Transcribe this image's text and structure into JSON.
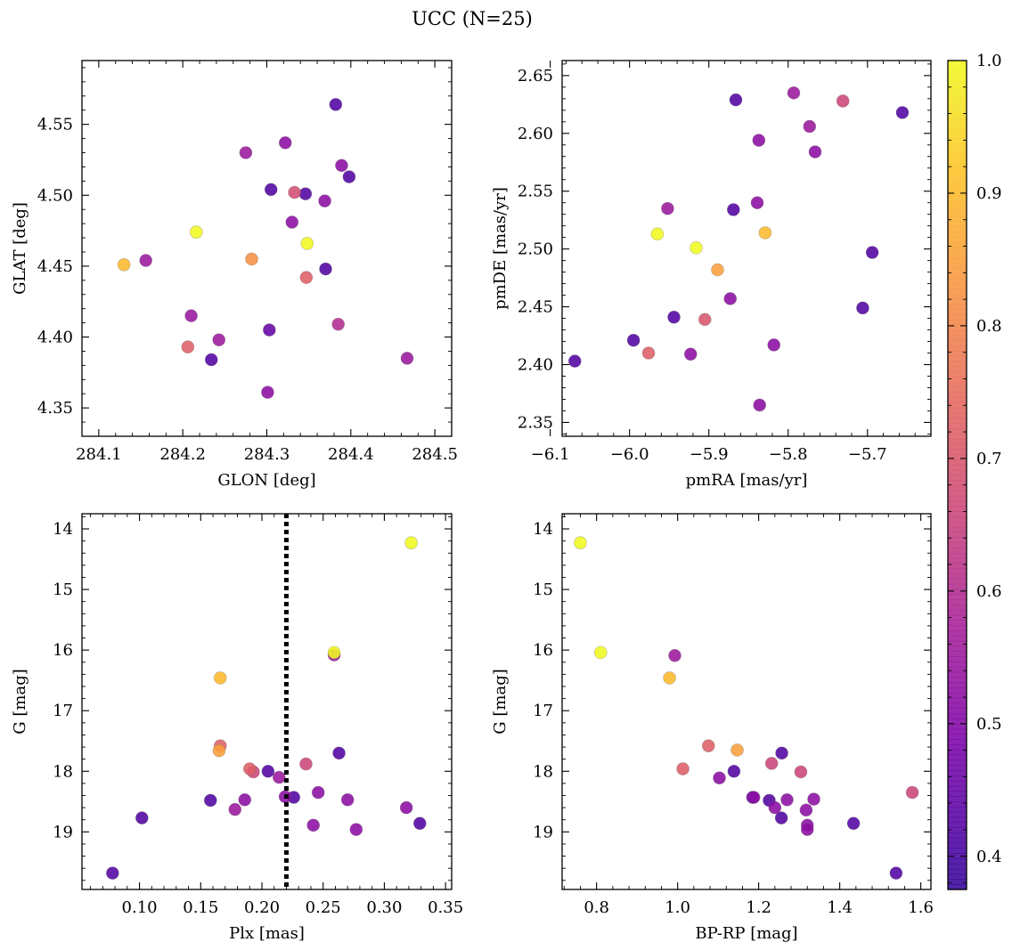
{
  "title": "UCC (N=25)",
  "colorbar": {
    "range": [
      0.375,
      1.0
    ],
    "ticks": [
      0.4,
      0.5,
      0.6,
      0.7,
      0.8,
      0.9,
      1.0
    ],
    "tick_labels": [
      "0.4",
      "0.5",
      "0.6",
      "0.7",
      "0.8",
      "0.9",
      "1.0"
    ],
    "colormap": "plasma"
  },
  "chart_data": [
    {
      "type": "scatter",
      "xlabel": "GLON [deg]",
      "ylabel": "GLAT [deg]",
      "xlim": [
        284.08,
        284.52
      ],
      "ylim": [
        4.33,
        4.595
      ],
      "xticks": [
        284.1,
        284.2,
        284.3,
        284.4,
        284.5
      ],
      "xtick_labels": [
        "284.1",
        "284.2",
        "284.3",
        "284.4",
        "284.5"
      ],
      "yticks": [
        4.35,
        4.4,
        4.45,
        4.5,
        4.55
      ],
      "ytick_labels": [
        "4.35",
        "4.40",
        "4.45",
        "4.50",
        "4.55"
      ],
      "points": [
        {
          "x": 284.382,
          "y": 4.564,
          "c": 0.42
        },
        {
          "x": 284.322,
          "y": 4.537,
          "c": 0.52
        },
        {
          "x": 284.275,
          "y": 4.53,
          "c": 0.55
        },
        {
          "x": 284.389,
          "y": 4.521,
          "c": 0.52
        },
        {
          "x": 284.398,
          "y": 4.513,
          "c": 0.42
        },
        {
          "x": 284.305,
          "y": 4.504,
          "c": 0.42
        },
        {
          "x": 284.346,
          "y": 4.501,
          "c": 0.42
        },
        {
          "x": 284.333,
          "y": 4.502,
          "c": 0.68
        },
        {
          "x": 284.369,
          "y": 4.496,
          "c": 0.52
        },
        {
          "x": 284.33,
          "y": 4.481,
          "c": 0.52
        },
        {
          "x": 284.216,
          "y": 4.474,
          "c": 1.0
        },
        {
          "x": 284.348,
          "y": 4.466,
          "c": 1.0
        },
        {
          "x": 284.13,
          "y": 4.451,
          "c": 0.9
        },
        {
          "x": 284.156,
          "y": 4.454,
          "c": 0.55
        },
        {
          "x": 284.282,
          "y": 4.455,
          "c": 0.82
        },
        {
          "x": 284.37,
          "y": 4.448,
          "c": 0.42
        },
        {
          "x": 284.347,
          "y": 4.442,
          "c": 0.72
        },
        {
          "x": 284.21,
          "y": 4.415,
          "c": 0.55
        },
        {
          "x": 284.385,
          "y": 4.409,
          "c": 0.6
        },
        {
          "x": 284.303,
          "y": 4.405,
          "c": 0.45
        },
        {
          "x": 284.243,
          "y": 4.398,
          "c": 0.55
        },
        {
          "x": 284.206,
          "y": 4.393,
          "c": 0.72
        },
        {
          "x": 284.234,
          "y": 4.384,
          "c": 0.42
        },
        {
          "x": 284.467,
          "y": 4.385,
          "c": 0.55
        },
        {
          "x": 284.301,
          "y": 4.361,
          "c": 0.52
        }
      ]
    },
    {
      "type": "scatter",
      "xlabel": "pmRA [mas/yr]",
      "ylabel": "pmDE [mas/yr]",
      "xlim": [
        -6.085,
        -5.62
      ],
      "ylim": [
        2.338,
        2.663
      ],
      "xticks": [
        -6.1,
        -6.0,
        -5.9,
        -5.8,
        -5.7
      ],
      "xtick_labels": [
        "−6.1",
        "−6.0",
        "−5.9",
        "−5.8",
        "−5.7"
      ],
      "yticks": [
        2.35,
        2.4,
        2.45,
        2.5,
        2.55,
        2.6,
        2.65
      ],
      "ytick_labels": [
        "2.35",
        "2.40",
        "2.45",
        "2.50",
        "2.55",
        "2.60",
        "2.65"
      ],
      "points": [
        {
          "x": -5.866,
          "y": 2.629,
          "c": 0.42
        },
        {
          "x": -5.793,
          "y": 2.635,
          "c": 0.55
        },
        {
          "x": -5.731,
          "y": 2.628,
          "c": 0.66
        },
        {
          "x": -5.656,
          "y": 2.618,
          "c": 0.42
        },
        {
          "x": -5.773,
          "y": 2.606,
          "c": 0.55
        },
        {
          "x": -5.837,
          "y": 2.594,
          "c": 0.52
        },
        {
          "x": -5.766,
          "y": 2.584,
          "c": 0.52
        },
        {
          "x": -5.952,
          "y": 2.535,
          "c": 0.55
        },
        {
          "x": -5.869,
          "y": 2.534,
          "c": 0.42
        },
        {
          "x": -5.839,
          "y": 2.54,
          "c": 0.52
        },
        {
          "x": -5.965,
          "y": 2.513,
          "c": 1.0
        },
        {
          "x": -5.829,
          "y": 2.514,
          "c": 0.9
        },
        {
          "x": -5.916,
          "y": 2.501,
          "c": 1.0
        },
        {
          "x": -5.694,
          "y": 2.497,
          "c": 0.42
        },
        {
          "x": -5.889,
          "y": 2.482,
          "c": 0.85
        },
        {
          "x": -5.873,
          "y": 2.457,
          "c": 0.52
        },
        {
          "x": -5.706,
          "y": 2.449,
          "c": 0.42
        },
        {
          "x": -5.944,
          "y": 2.441,
          "c": 0.42
        },
        {
          "x": -5.905,
          "y": 2.439,
          "c": 0.7
        },
        {
          "x": -5.995,
          "y": 2.421,
          "c": 0.42
        },
        {
          "x": -5.818,
          "y": 2.417,
          "c": 0.52
        },
        {
          "x": -5.976,
          "y": 2.41,
          "c": 0.72
        },
        {
          "x": -5.923,
          "y": 2.409,
          "c": 0.52
        },
        {
          "x": -6.069,
          "y": 2.403,
          "c": 0.42
        },
        {
          "x": -5.836,
          "y": 2.365,
          "c": 0.52
        }
      ]
    },
    {
      "type": "scatter",
      "xlabel": "Plx [mas]",
      "ylabel": "G [mag]",
      "xlim": [
        0.053,
        0.355
      ],
      "ylim": [
        19.95,
        13.75
      ],
      "y_inverted": true,
      "xticks": [
        0.1,
        0.15,
        0.2,
        0.25,
        0.3,
        0.35
      ],
      "xtick_labels": [
        "0.10",
        "0.15",
        "0.20",
        "0.25",
        "0.30",
        "0.35"
      ],
      "yticks": [
        14,
        15,
        16,
        17,
        18,
        19
      ],
      "ytick_labels": [
        "14",
        "15",
        "16",
        "17",
        "18",
        "19"
      ],
      "vline": {
        "x": 0.22,
        "style": "dotted"
      },
      "points": [
        {
          "x": 0.322,
          "y": 14.23,
          "c": 1.0
        },
        {
          "x": 0.259,
          "y": 16.08,
          "c": 0.55
        },
        {
          "x": 0.259,
          "y": 16.04,
          "c": 1.0
        },
        {
          "x": 0.166,
          "y": 16.46,
          "c": 0.9
        },
        {
          "x": 0.166,
          "y": 17.58,
          "c": 0.72
        },
        {
          "x": 0.165,
          "y": 17.66,
          "c": 0.85
        },
        {
          "x": 0.263,
          "y": 17.7,
          "c": 0.42
        },
        {
          "x": 0.236,
          "y": 17.88,
          "c": 0.66
        },
        {
          "x": 0.19,
          "y": 17.96,
          "c": 0.72
        },
        {
          "x": 0.193,
          "y": 18.01,
          "c": 0.66
        },
        {
          "x": 0.205,
          "y": 18.0,
          "c": 0.42
        },
        {
          "x": 0.214,
          "y": 18.1,
          "c": 0.55
        },
        {
          "x": 0.246,
          "y": 18.35,
          "c": 0.52
        },
        {
          "x": 0.219,
          "y": 18.42,
          "c": 0.52
        },
        {
          "x": 0.226,
          "y": 18.43,
          "c": 0.42
        },
        {
          "x": 0.186,
          "y": 18.47,
          "c": 0.52
        },
        {
          "x": 0.158,
          "y": 18.48,
          "c": 0.42
        },
        {
          "x": 0.27,
          "y": 18.47,
          "c": 0.52
        },
        {
          "x": 0.178,
          "y": 18.63,
          "c": 0.55
        },
        {
          "x": 0.318,
          "y": 18.6,
          "c": 0.52
        },
        {
          "x": 0.102,
          "y": 18.77,
          "c": 0.42
        },
        {
          "x": 0.242,
          "y": 18.89,
          "c": 0.52
        },
        {
          "x": 0.329,
          "y": 18.86,
          "c": 0.42
        },
        {
          "x": 0.277,
          "y": 18.96,
          "c": 0.52
        },
        {
          "x": 0.078,
          "y": 19.68,
          "c": 0.42
        }
      ]
    },
    {
      "type": "scatter",
      "xlabel": "BP-RP [mag]",
      "ylabel": "G [mag]",
      "xlim": [
        0.715,
        1.625
      ],
      "ylim": [
        19.95,
        13.75
      ],
      "y_inverted": true,
      "xticks": [
        0.8,
        1.0,
        1.2,
        1.4,
        1.6
      ],
      "xtick_labels": [
        "0.8",
        "1.0",
        "1.2",
        "1.4",
        "1.6"
      ],
      "yticks": [
        14,
        15,
        16,
        17,
        18,
        19
      ],
      "ytick_labels": [
        "14",
        "15",
        "16",
        "17",
        "18",
        "19"
      ],
      "points": [
        {
          "x": 0.76,
          "y": 14.23,
          "c": 1.0
        },
        {
          "x": 0.81,
          "y": 16.04,
          "c": 1.0
        },
        {
          "x": 0.993,
          "y": 16.09,
          "c": 0.55
        },
        {
          "x": 0.98,
          "y": 16.46,
          "c": 0.9
        },
        {
          "x": 1.076,
          "y": 17.58,
          "c": 0.72
        },
        {
          "x": 1.147,
          "y": 17.65,
          "c": 0.85
        },
        {
          "x": 1.257,
          "y": 17.7,
          "c": 0.42
        },
        {
          "x": 1.232,
          "y": 17.87,
          "c": 0.66
        },
        {
          "x": 1.013,
          "y": 17.96,
          "c": 0.72
        },
        {
          "x": 1.139,
          "y": 18.0,
          "c": 0.42
        },
        {
          "x": 1.304,
          "y": 18.01,
          "c": 0.66
        },
        {
          "x": 1.103,
          "y": 18.11,
          "c": 0.52
        },
        {
          "x": 1.579,
          "y": 18.35,
          "c": 0.66
        },
        {
          "x": 1.185,
          "y": 18.43,
          "c": 0.45
        },
        {
          "x": 1.188,
          "y": 18.43,
          "c": 0.52
        },
        {
          "x": 1.226,
          "y": 18.48,
          "c": 0.42
        },
        {
          "x": 1.336,
          "y": 18.46,
          "c": 0.52
        },
        {
          "x": 1.27,
          "y": 18.47,
          "c": 0.52
        },
        {
          "x": 1.24,
          "y": 18.6,
          "c": 0.52
        },
        {
          "x": 1.317,
          "y": 18.64,
          "c": 0.52
        },
        {
          "x": 1.256,
          "y": 18.77,
          "c": 0.42
        },
        {
          "x": 1.32,
          "y": 18.89,
          "c": 0.52
        },
        {
          "x": 1.434,
          "y": 18.86,
          "c": 0.42
        },
        {
          "x": 1.32,
          "y": 18.96,
          "c": 0.52
        },
        {
          "x": 1.539,
          "y": 19.68,
          "c": 0.42
        }
      ]
    }
  ]
}
